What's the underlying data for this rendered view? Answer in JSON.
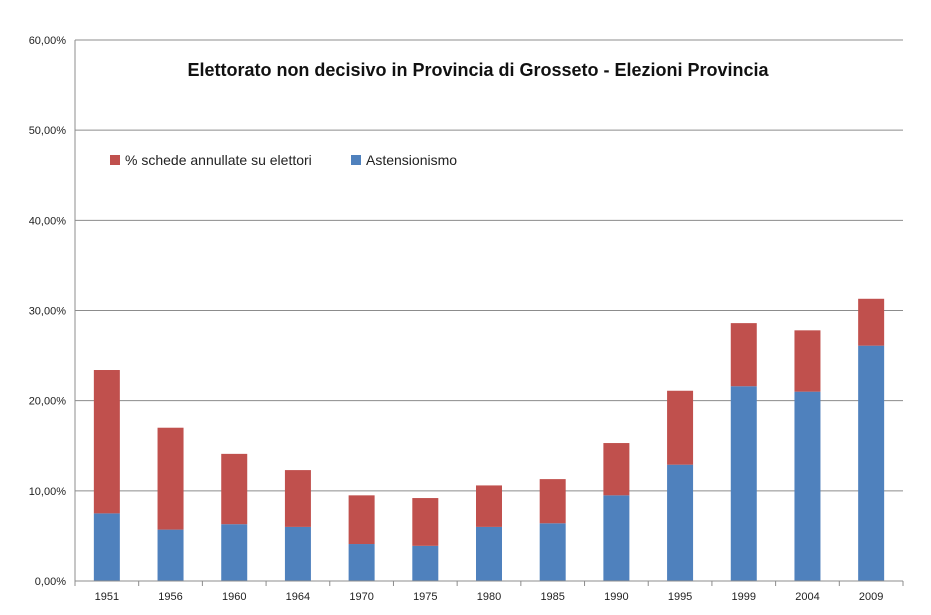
{
  "chart_data": {
    "type": "bar",
    "stacked": true,
    "title": "Elettorato non decisivo  in Provincia di Grosseto - Elezioni Provincia",
    "xlabel": "",
    "ylabel": "",
    "categories": [
      "1951",
      "1956",
      "1960",
      "1964",
      "1970",
      "1975",
      "1980",
      "1985",
      "1990",
      "1995",
      "1999",
      "2004",
      "2009"
    ],
    "series": [
      {
        "name": "Astensionismo",
        "color": "#4F81BD",
        "values": [
          7.5,
          5.7,
          6.3,
          6.0,
          4.1,
          3.9,
          6.0,
          6.4,
          9.5,
          12.9,
          21.6,
          21.0,
          26.1
        ]
      },
      {
        "name": "% schede annullate su elettori",
        "color": "#C0504D",
        "values": [
          15.9,
          11.3,
          7.8,
          6.3,
          5.4,
          5.3,
          4.6,
          4.9,
          5.8,
          8.2,
          7.0,
          6.8,
          5.2
        ]
      }
    ],
    "ylim": [
      0,
      60
    ],
    "yticks": [
      "0,00%",
      "10,00%",
      "20,00%",
      "30,00%",
      "40,00%",
      "50,00%",
      "60,00%"
    ],
    "grid": true,
    "legend_position": "top-left",
    "legend_order": [
      "% schede annullate su elettori",
      "Astensionismo"
    ]
  }
}
